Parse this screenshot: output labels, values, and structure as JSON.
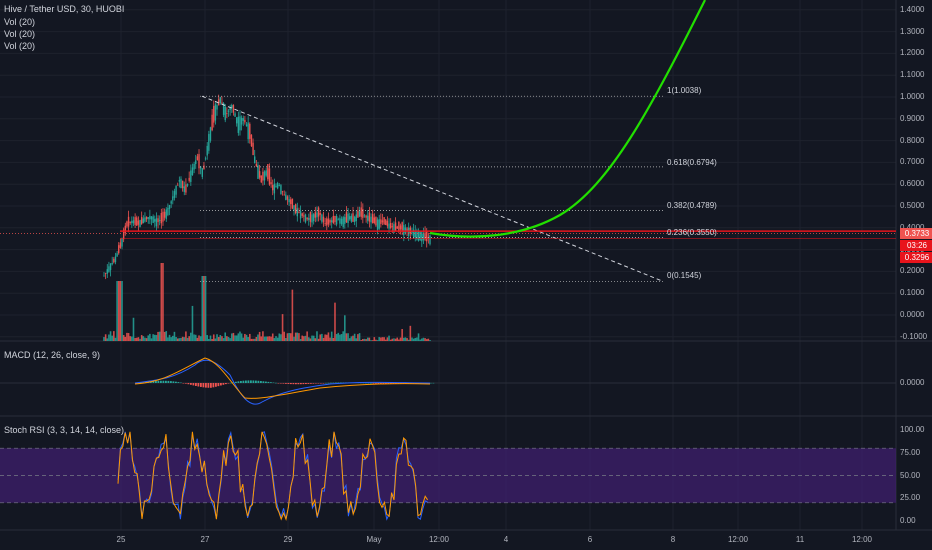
{
  "header": {
    "title": "Hive / Tether USD, 30, HUOBI",
    "indicators": [
      "Vol (20)",
      "Vol (20)",
      "Vol (20)"
    ]
  },
  "macd_label": "MACD (12, 26, close, 9)",
  "stoch_label": "Stoch RSI (3, 3, 14, 14, close)",
  "colors": {
    "background": "#131722",
    "up": "#26a69a",
    "down": "#ef5350",
    "projection": "#22e000",
    "support": "#e8141c",
    "stoch_band": "#3f1f6e",
    "stoch_k": "#2962ff",
    "stoch_d": "#ff9800"
  },
  "price_axis": [
    "1.4000",
    "1.3000",
    "1.2000",
    "1.1000",
    "1.0000",
    "0.9000",
    "0.8000",
    "0.7000",
    "0.6000",
    "0.5000",
    "0.4000",
    "0.3000",
    "0.2000",
    "0.1000",
    "0.0000",
    "-0.1000"
  ],
  "price_tags": {
    "last": "0.3733",
    "time": "03:26",
    "support": "0.3296"
  },
  "macd_axis": "0.0000",
  "stoch_axis": [
    "100.00",
    "75.00",
    "50.00",
    "25.00",
    "0.00"
  ],
  "x_axis": [
    "25",
    "27",
    "29",
    "May",
    "12:00",
    "4",
    "6",
    "8",
    "12:00",
    "11",
    "12:00"
  ],
  "fib_labels": [
    "1(1.0038)",
    "0.618(0.6794)",
    "0.382(0.4789)",
    "0.236(0.3550)",
    "0(0.1545)"
  ],
  "chart_data": {
    "type": "candlestick",
    "title": "Hive / Tether USD, 30, HUOBI",
    "ylim": [
      -0.1,
      1.45
    ],
    "fib_levels": [
      {
        "ratio": 1,
        "price": 1.0038
      },
      {
        "ratio": 0.618,
        "price": 0.6794
      },
      {
        "ratio": 0.382,
        "price": 0.4789
      },
      {
        "ratio": 0.236,
        "price": 0.355
      },
      {
        "ratio": 0,
        "price": 0.1545
      }
    ],
    "support_level": 0.3296,
    "last_price": 0.3733,
    "close_path": [
      0.18,
      0.22,
      0.26,
      0.33,
      0.42,
      0.43,
      0.42,
      0.44,
      0.45,
      0.43,
      0.44,
      0.48,
      0.55,
      0.62,
      0.57,
      0.65,
      0.72,
      0.65,
      0.8,
      0.93,
      0.99,
      0.92,
      0.96,
      0.88,
      0.9,
      0.84,
      0.7,
      0.62,
      0.66,
      0.58,
      0.6,
      0.55,
      0.52,
      0.48,
      0.46,
      0.44,
      0.45,
      0.47,
      0.42,
      0.43,
      0.44,
      0.43,
      0.45,
      0.44,
      0.47,
      0.45,
      0.44,
      0.42,
      0.43,
      0.41,
      0.4,
      0.4,
      0.39,
      0.38,
      0.37,
      0.36,
      0.35
    ]
  }
}
